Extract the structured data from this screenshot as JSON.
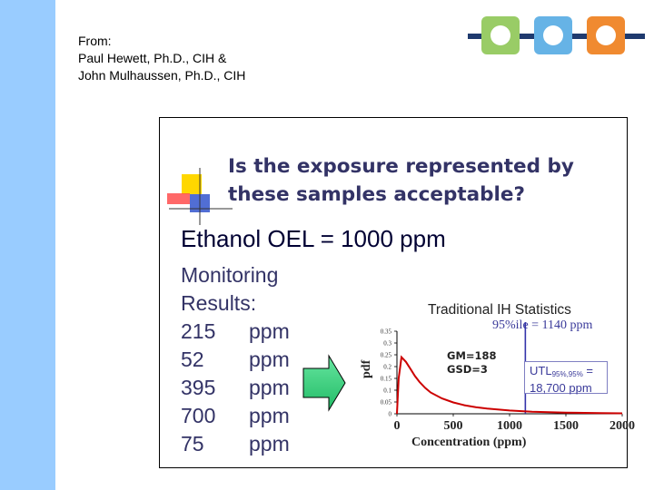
{
  "credits": {
    "line1": "From:",
    "line2": "Paul Hewett, Ph.D., CIH &",
    "line3": "John Mulhaussen, Ph.D., CIH"
  },
  "slide": {
    "question_line1": "Is the exposure represented by",
    "question_line2": "these  samples acceptable?",
    "oel": "Ethanol OEL = 1000 ppm",
    "monitoring_line1": "Monitoring",
    "monitoring_line2": "Results:",
    "results": [
      {
        "value": "215",
        "unit": "ppm"
      },
      {
        "value": "52",
        "unit": "ppm"
      },
      {
        "value": "395",
        "unit": "ppm"
      },
      {
        "value": "700",
        "unit": "ppm"
      },
      {
        "value": "75",
        "unit": "ppm"
      }
    ]
  },
  "chart_data": {
    "type": "line",
    "title": "Traditional IH Statistics",
    "annotation_percentile": "95%ile = 1140 ppm",
    "gm_label": "GM=188",
    "gsd_label": "GSD=3",
    "utl_label_main": "UTL",
    "utl_label_sub": "95%,95%",
    "utl_label_eq": " =",
    "utl_value": "18,700 ppm",
    "xlabel": "Concentration (ppm)",
    "ylabel": "pdf",
    "xlim": [
      0,
      2000
    ],
    "ylim": [
      0,
      0.35
    ],
    "x_ticks": [
      "0",
      "500",
      "1000",
      "1500",
      "2000"
    ],
    "y_ticks": [
      "0",
      "0.05",
      "0.1",
      "0.15",
      "0.2",
      "0.25",
      "0.3",
      "0.35"
    ],
    "series": [
      {
        "x": [
          0,
          15,
          40,
          80,
          120,
          160,
          200,
          250,
          300,
          400,
          500,
          600,
          700,
          800,
          1000,
          1200,
          1500,
          1800,
          2000
        ],
        "y": [
          0,
          0.15,
          0.24,
          0.22,
          0.19,
          0.16,
          0.135,
          0.11,
          0.09,
          0.065,
          0.048,
          0.036,
          0.028,
          0.022,
          0.014,
          0.009,
          0.005,
          0.003,
          0.002
        ]
      }
    ],
    "vline_x": 1140,
    "colors": {
      "curve": "#cc0000",
      "vline": "#3333aa",
      "axis": "#000000"
    }
  },
  "colors": {
    "left_bar": "#99ccff",
    "title_text": "#333366",
    "logo_green": "#99cc66",
    "logo_blue": "#66b3e6",
    "logo_orange": "#f08a30",
    "logo_navy": "#1f3a6e"
  }
}
